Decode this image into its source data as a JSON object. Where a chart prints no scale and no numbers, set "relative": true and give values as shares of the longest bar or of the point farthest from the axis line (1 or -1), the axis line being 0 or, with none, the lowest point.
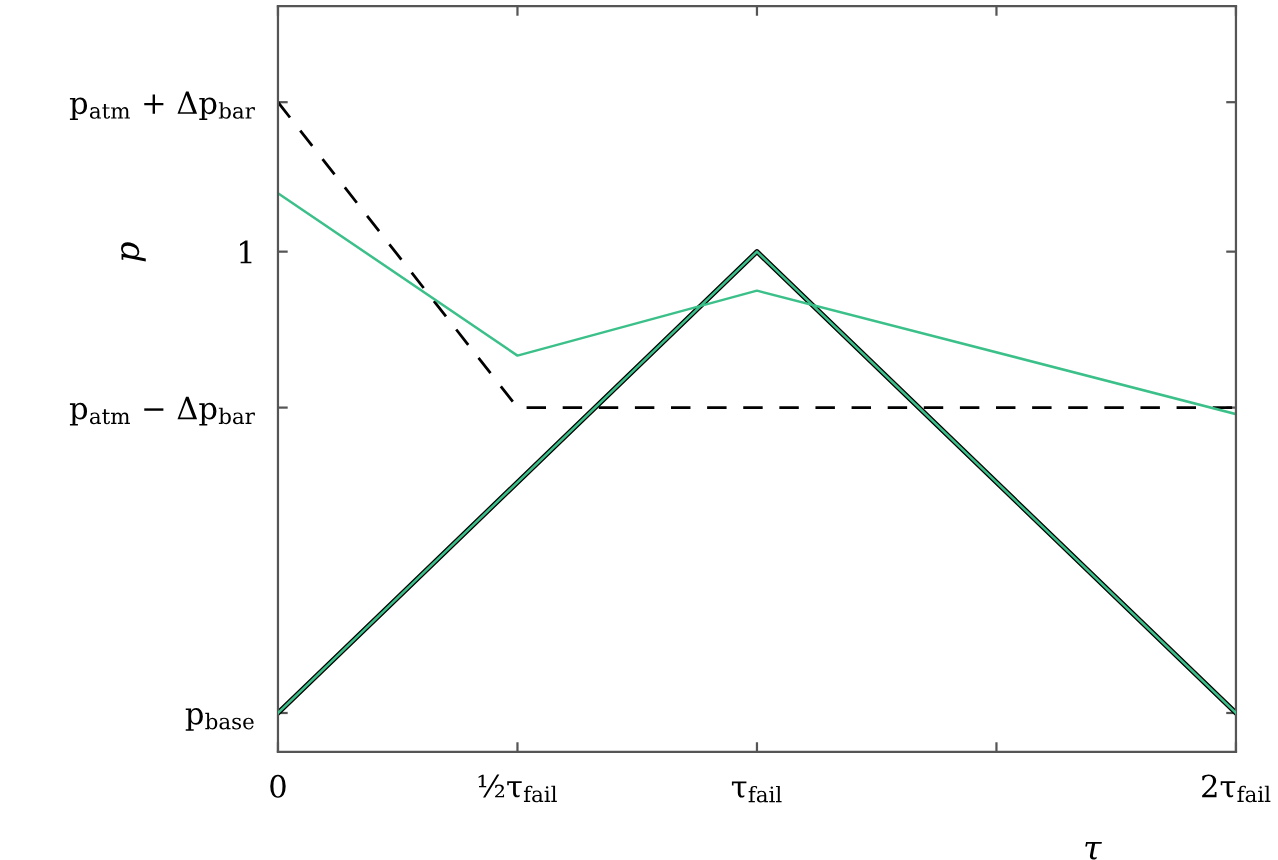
{
  "chart_data": {
    "type": "line",
    "xlabel": "τ",
    "ylabel": "p",
    "relative": true,
    "series": [
      {
        "color": "#000000",
        "x": [
          0,
          1,
          2
        ],
        "values": [
          0.06,
          0.77,
          0.06
        ],
        "line_style": "solid"
      },
      {
        "color": "#000000",
        "x": [
          0,
          0.5,
          2
        ],
        "values": [
          1,
          0.53,
          0.53
        ],
        "line_style": "dashed"
      },
      {
        "color": "#3cc08a",
        "x": [
          0,
          0.5,
          1,
          2
        ],
        "values": [
          0.86,
          0.61,
          0.71,
          0.52
        ],
        "line_style": "solid"
      },
      {
        "color": "#3cc08a",
        "x": [
          0,
          1,
          2
        ],
        "values": [
          0.06,
          0.77,
          0.06
        ],
        "line_style": "solid"
      }
    ],
    "xlim": [
      0,
      2
    ],
    "xticks": [
      0,
      {
        "value": 0.5,
        "label": "½τ$_{fail}$"
      },
      {
        "value": 1,
        "label": "τ$_{fail}$"
      },
      {
        "value": 1.5,
        "label": null
      },
      {
        "value": 2,
        "label": "2τ$_{fail}$"
      }
    ],
    "ref_lines": [
      {
        "axis": "y",
        "value": 0.06,
        "label": "p$_{base}$"
      },
      {
        "axis": "y",
        "value": 0.53,
        "label": "p$_{atm}$ − Δp$_{bar}$"
      },
      {
        "axis": "y",
        "value": 0.77,
        "label": "1"
      },
      {
        "axis": "y",
        "value": 1,
        "label": "p$_{atm}$ + Δp$_{bar}$"
      }
    ],
    "grid": false,
    "legend": false,
    "marker": "none"
  }
}
